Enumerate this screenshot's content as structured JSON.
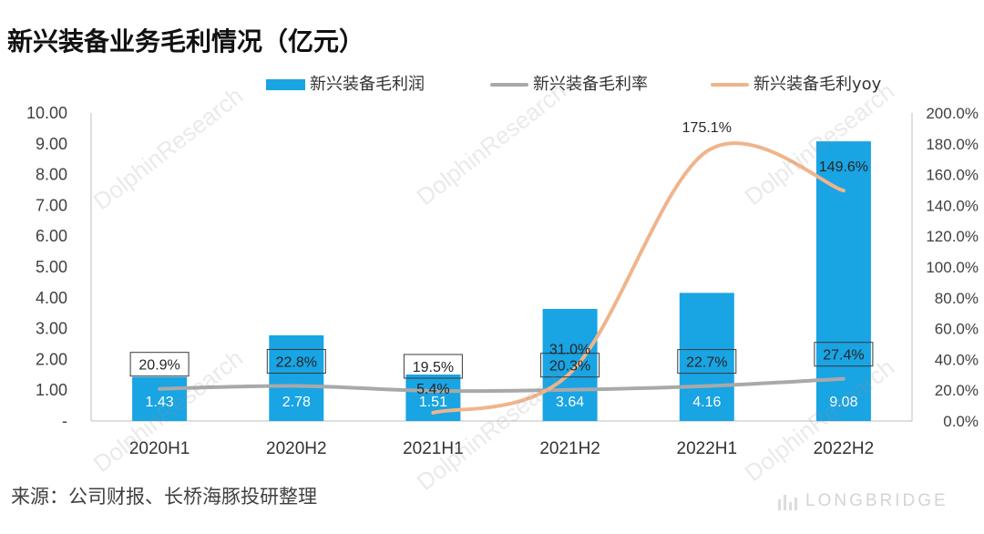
{
  "chart_data": {
    "type": "bar",
    "title": "新兴装备业务毛利情况（亿元）",
    "categories": [
      "2020H1",
      "2020H2",
      "2021H1",
      "2021H2",
      "2022H1",
      "2022H2"
    ],
    "series": [
      {
        "name": "新兴装备毛利润",
        "type": "bar",
        "axis": "left",
        "values": [
          1.43,
          2.78,
          1.51,
          3.64,
          4.16,
          9.08
        ],
        "labels": [
          "1.43",
          "2.78",
          "1.51",
          "3.64",
          "4.16",
          "9.08"
        ],
        "color": "#19a4e3"
      },
      {
        "name": "新兴装备毛利率",
        "type": "line",
        "axis": "right",
        "smooth": true,
        "values": [
          20.9,
          22.8,
          19.5,
          20.3,
          22.7,
          27.4
        ],
        "labels": [
          "20.9%",
          "22.8%",
          "19.5%",
          "20.3%",
          "22.7%",
          "27.4%"
        ],
        "color": "#a9a9a9"
      },
      {
        "name": "新兴装备毛利yoy",
        "type": "line",
        "axis": "right",
        "smooth": true,
        "values": [
          null,
          null,
          5.4,
          31.0,
          175.1,
          149.6
        ],
        "labels": [
          null,
          null,
          "5.4%",
          "31.0%",
          "175.1%",
          "149.6%"
        ],
        "color": "#f0b48c"
      }
    ],
    "left_axis": {
      "range": [
        0,
        10
      ],
      "ticks": [
        0,
        1,
        2,
        3,
        4,
        5,
        6,
        7,
        8,
        9,
        10
      ],
      "tick_labels": [
        "-",
        "1.00",
        "2.00",
        "3.00",
        "4.00",
        "5.00",
        "6.00",
        "7.00",
        "8.00",
        "9.00",
        "10.00"
      ]
    },
    "right_axis": {
      "range": [
        0,
        200
      ],
      "ticks": [
        0,
        20,
        40,
        60,
        80,
        100,
        120,
        140,
        160,
        180,
        200
      ],
      "tick_labels": [
        "0.0%",
        "20.0%",
        "40.0%",
        "60.0%",
        "80.0%",
        "100.0%",
        "120.0%",
        "140.0%",
        "160.0%",
        "180.0%",
        "200.0%"
      ]
    },
    "legend": "top",
    "grid": false
  },
  "source": "来源：公司财报、长桥海豚投研整理",
  "watermark": {
    "text": "DolphinResearch",
    "logo": "LONGBRIDGE"
  }
}
